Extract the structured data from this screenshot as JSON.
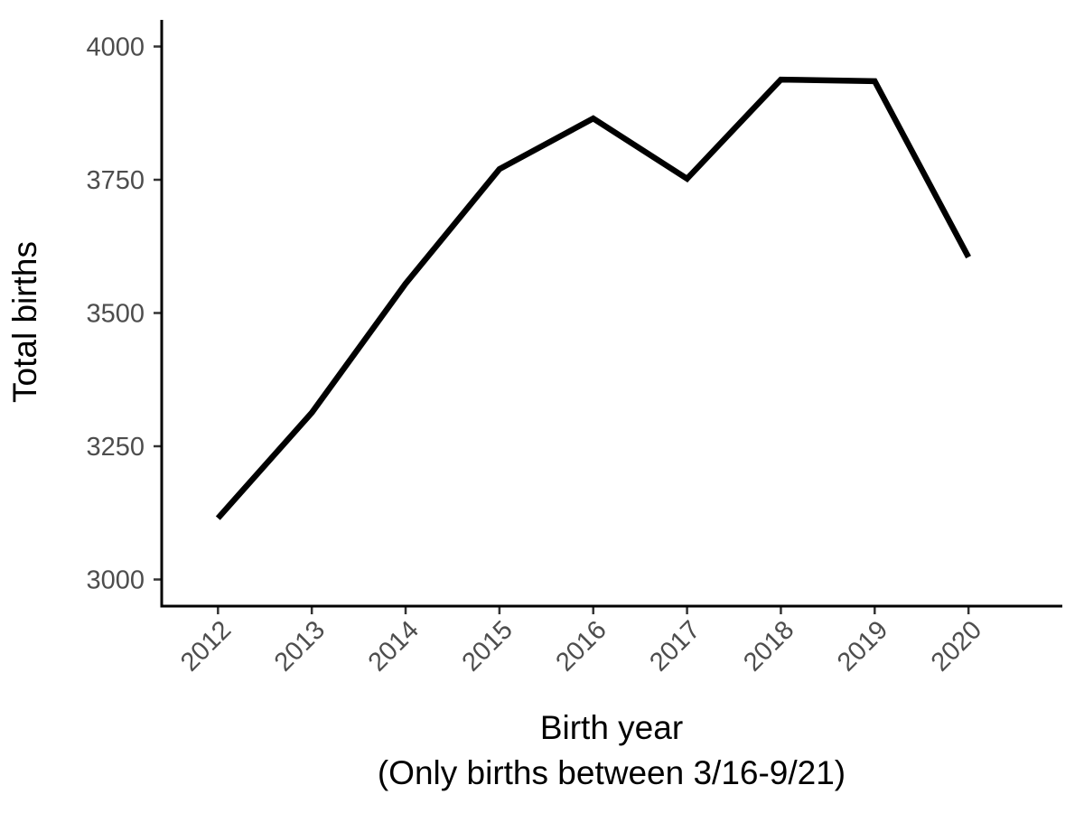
{
  "chart_data": {
    "type": "line",
    "title": "",
    "xlabel": "Birth year",
    "xlabel_note": "(Only births between 3/16-9/21)",
    "ylabel": "Total births",
    "x": [
      2012,
      2013,
      2014,
      2015,
      2016,
      2017,
      2018,
      2019,
      2020
    ],
    "x_tick_labels": [
      "2012",
      "2013",
      "2014",
      "2015",
      "2016",
      "2017",
      "2018",
      "2019",
      "2020"
    ],
    "series": [
      {
        "values": [
          3115,
          3313,
          3555,
          3770,
          3865,
          3752,
          3938,
          3935,
          3605
        ],
        "color": "#000000"
      }
    ],
    "y_ticks": [
      3000,
      3250,
      3500,
      3750,
      4000
    ],
    "y_tick_labels": [
      "3000",
      "3250",
      "3500",
      "3750",
      "4000"
    ],
    "xlim": [
      2011.4,
      2021.0
    ],
    "ylim": [
      2950,
      4050
    ],
    "grid": false,
    "legend": "none",
    "x_tick_label_rotation_deg": -45
  }
}
